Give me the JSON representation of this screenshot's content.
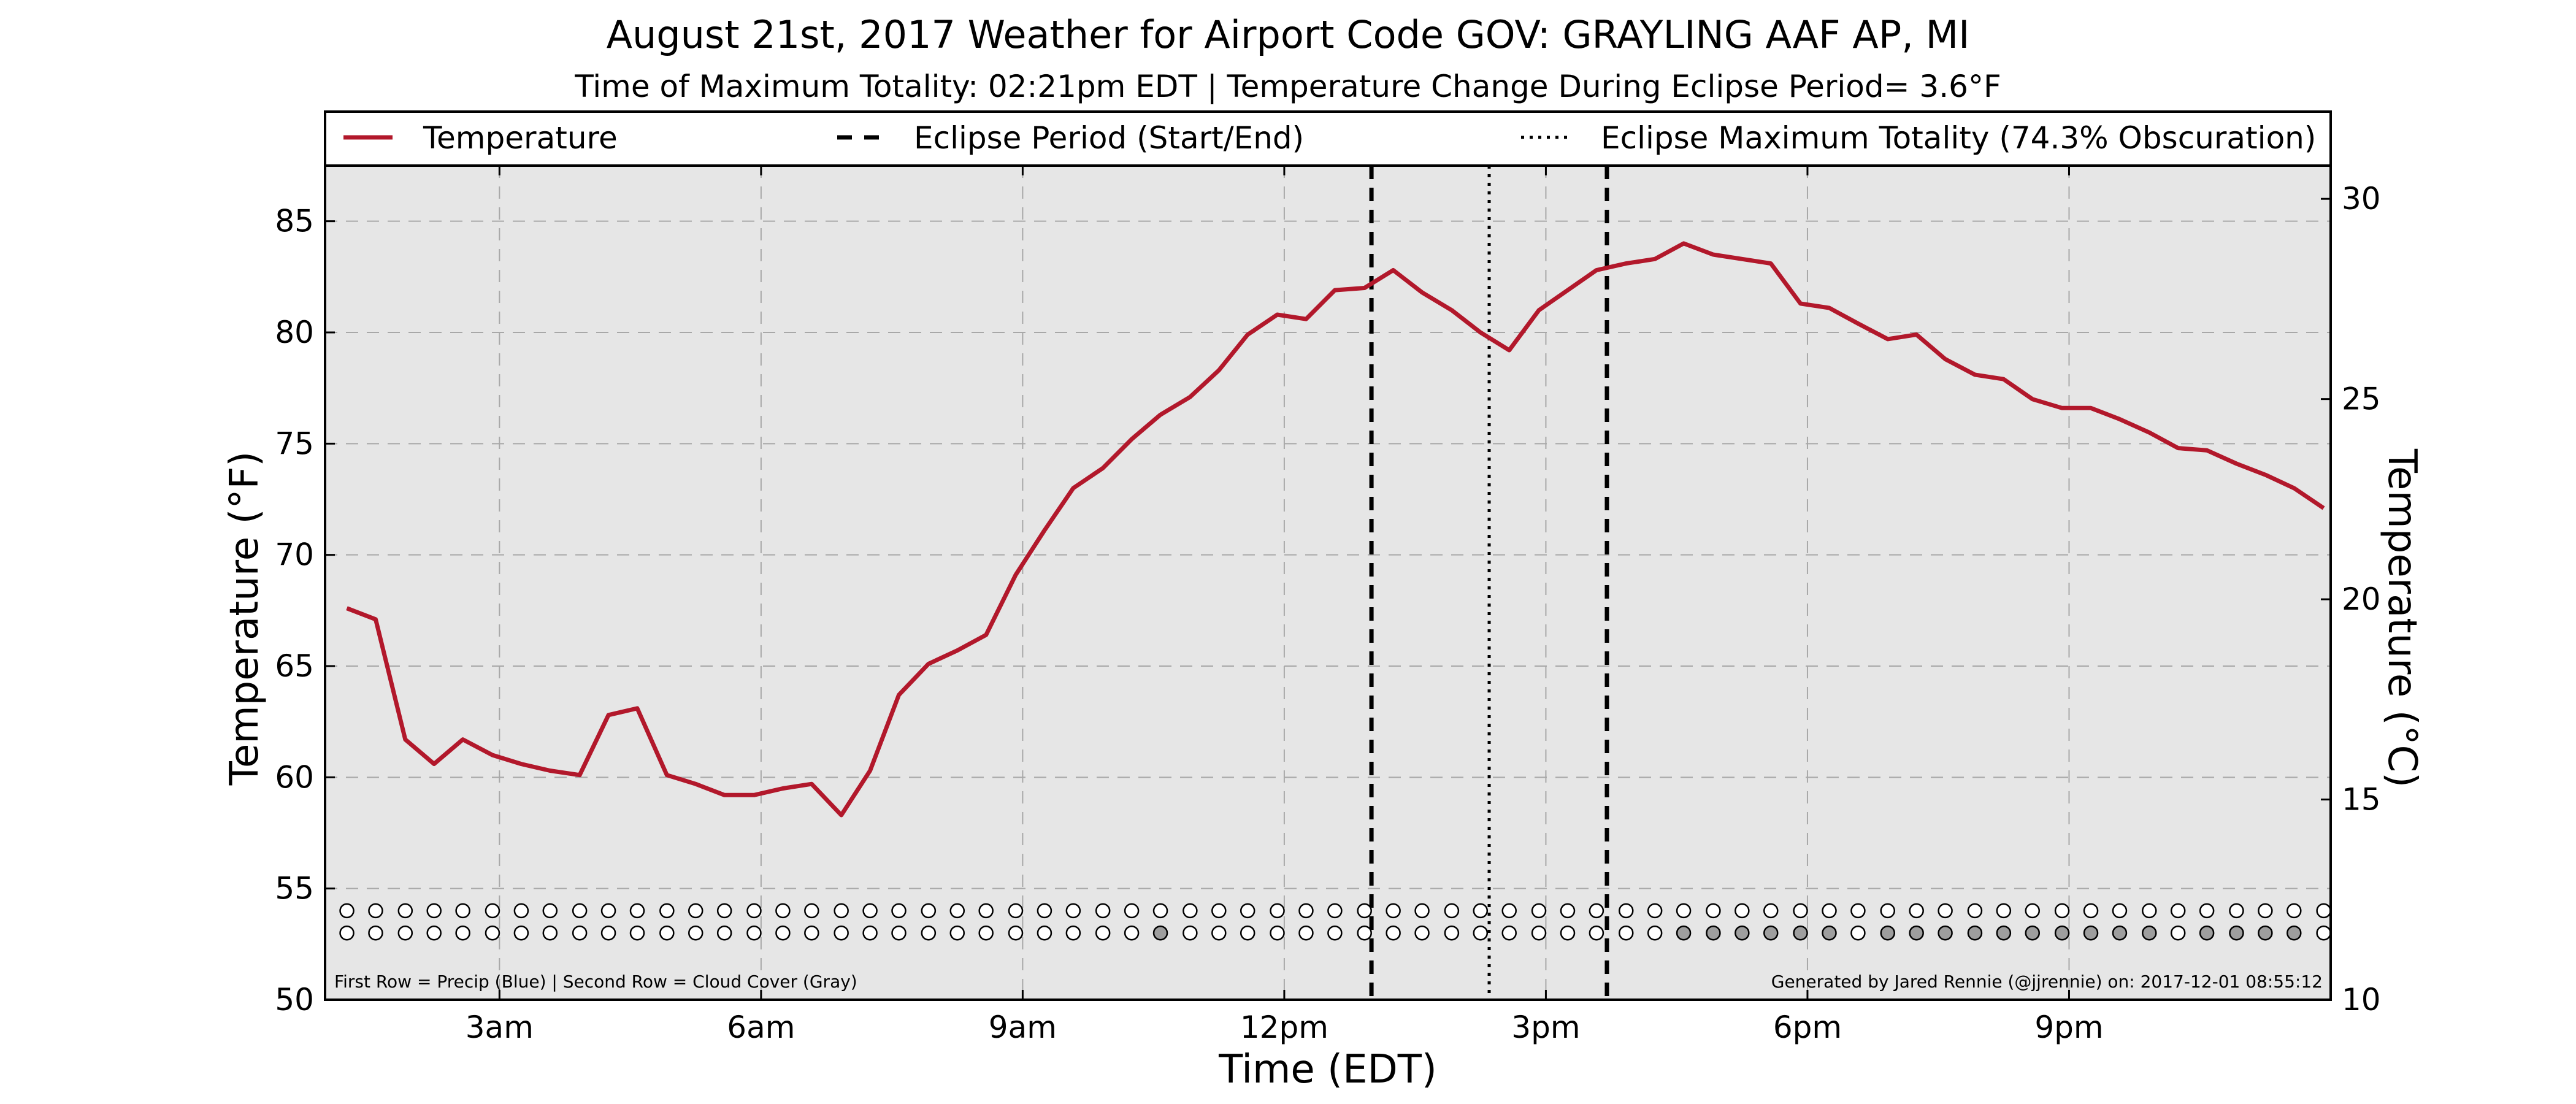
{
  "chart_data": {
    "type": "line",
    "title": "August 21st, 2017 Weather for Airport Code GOV: GRAYLING AAF AP, MI",
    "subtitle": "Time of Maximum Totality: 02:21pm EDT | Temperature Change During Eclipse Period= 3.6°F",
    "xlabel": "Time (EDT)",
    "ylabel": "Temperature (°F)",
    "ylabel_right": "Temperature (°C)",
    "x_unit": "hours after midnight, EDT",
    "xlim": [
      1,
      24
    ],
    "ylim": [
      50,
      87.5
    ],
    "ylim_right_celsius": [
      10,
      30.83
    ],
    "x_ticks": [
      {
        "value": 3,
        "label": "3am"
      },
      {
        "value": 6,
        "label": "6am"
      },
      {
        "value": 9,
        "label": "9am"
      },
      {
        "value": 12,
        "label": "12pm"
      },
      {
        "value": 15,
        "label": "3pm"
      },
      {
        "value": 18,
        "label": "6pm"
      },
      {
        "value": 21,
        "label": "9pm"
      }
    ],
    "y_ticks": [
      50,
      55,
      60,
      65,
      70,
      75,
      80,
      85
    ],
    "y_ticks_right": [
      10,
      15,
      20,
      25,
      30
    ],
    "grid": true,
    "legend_position": "top",
    "legend": [
      {
        "label": "Temperature",
        "style": "solid"
      },
      {
        "label": "Eclipse Period (Start/End)",
        "style": "dashed"
      },
      {
        "label": "Eclipse Maximum Totality (74.3% Obscuration)",
        "style": "dotted"
      }
    ],
    "series": [
      {
        "name": "Temperature",
        "color": "#b2182b",
        "x": [
          1.25,
          1.58,
          1.92,
          2.25,
          2.58,
          2.92,
          3.25,
          3.58,
          3.92,
          4.25,
          4.58,
          4.92,
          5.25,
          5.58,
          5.92,
          6.25,
          6.58,
          6.92,
          7.25,
          7.58,
          7.92,
          8.25,
          8.58,
          8.92,
          9.25,
          9.58,
          9.92,
          10.25,
          10.58,
          10.92,
          11.25,
          11.58,
          11.92,
          12.25,
          12.58,
          12.92,
          13.25,
          13.58,
          13.92,
          14.25,
          14.58,
          14.92,
          15.25,
          15.58,
          15.92,
          16.25,
          16.58,
          16.92,
          17.25,
          17.58,
          17.92,
          18.25,
          18.58,
          18.92,
          19.25,
          19.58,
          19.92,
          20.25,
          20.58,
          20.92,
          21.25,
          21.58,
          21.92,
          22.25,
          22.58,
          22.92,
          23.25,
          23.58,
          23.92
        ],
        "values": [
          67.6,
          67.1,
          61.7,
          60.6,
          61.7,
          61.0,
          60.6,
          60.3,
          60.1,
          62.8,
          63.1,
          60.1,
          59.7,
          59.2,
          59.2,
          59.5,
          59.7,
          58.3,
          60.3,
          63.7,
          65.1,
          65.7,
          66.4,
          69.1,
          71.1,
          73.0,
          73.9,
          75.2,
          76.3,
          77.1,
          78.3,
          79.9,
          80.8,
          80.6,
          81.9,
          82.0,
          82.8,
          81.8,
          81.0,
          80.0,
          79.2,
          81.0,
          81.9,
          82.8,
          83.1,
          83.3,
          84.0,
          83.5,
          83.3,
          83.1,
          81.3,
          81.1,
          80.4,
          79.7,
          79.9,
          78.8,
          78.1,
          77.9,
          77.0,
          76.6,
          76.6,
          76.1,
          75.5,
          74.8,
          74.7,
          74.1,
          73.6,
          73.0,
          72.1
        ]
      }
    ],
    "eclipse_start": 13.0,
    "eclipse_max": 14.35,
    "eclipse_end": 15.7,
    "marker_rows": [
      {
        "name": "Precip (Blue)",
        "y": 54.0,
        "filled_color": "#1f77b4",
        "x": [
          1.25,
          1.58,
          1.92,
          2.25,
          2.58,
          2.92,
          3.25,
          3.58,
          3.92,
          4.25,
          4.58,
          4.92,
          5.25,
          5.58,
          5.92,
          6.25,
          6.58,
          6.92,
          7.25,
          7.58,
          7.92,
          8.25,
          8.58,
          8.92,
          9.25,
          9.58,
          9.92,
          10.25,
          10.58,
          10.92,
          11.25,
          11.58,
          11.92,
          12.25,
          12.58,
          12.92,
          13.25,
          13.58,
          13.92,
          14.25,
          14.58,
          14.92,
          15.25,
          15.58,
          15.92,
          16.25,
          16.58,
          16.92,
          17.25,
          17.58,
          17.92,
          18.25,
          18.58,
          18.92,
          19.25,
          19.58,
          19.92,
          20.25,
          20.58,
          20.92,
          21.25,
          21.58,
          21.92,
          22.25,
          22.58,
          22.92,
          23.25,
          23.58,
          23.92
        ],
        "filled": []
      },
      {
        "name": "Cloud Cover (Gray)",
        "y": 53.0,
        "filled_color": "#9e9e9e",
        "x": [
          1.25,
          1.58,
          1.92,
          2.25,
          2.58,
          2.92,
          3.25,
          3.58,
          3.92,
          4.25,
          4.58,
          4.92,
          5.25,
          5.58,
          5.92,
          6.25,
          6.58,
          6.92,
          7.25,
          7.58,
          7.92,
          8.25,
          8.58,
          8.92,
          9.25,
          9.58,
          9.92,
          10.25,
          10.58,
          10.92,
          11.25,
          11.58,
          11.92,
          12.25,
          12.58,
          12.92,
          13.25,
          13.58,
          13.92,
          14.25,
          14.58,
          14.92,
          15.25,
          15.58,
          15.92,
          16.25,
          16.58,
          16.92,
          17.25,
          17.58,
          17.92,
          18.25,
          18.58,
          18.92,
          19.25,
          19.58,
          19.92,
          20.25,
          20.58,
          20.92,
          21.25,
          21.58,
          21.92,
          22.25,
          22.58,
          22.92,
          23.25,
          23.58,
          23.92
        ],
        "filled": [
          10.58,
          16.58,
          16.92,
          17.25,
          17.58,
          17.92,
          18.25,
          18.92,
          19.25,
          19.58,
          19.92,
          20.25,
          20.58,
          20.92,
          21.25,
          21.58,
          21.92,
          22.58,
          22.92,
          23.25,
          23.58
        ]
      }
    ],
    "annotation_left": "First Row = Precip (Blue) | Second Row = Cloud Cover (Gray)",
    "annotation_right": "Generated by Jared Rennie (@jjrennie) on: 2017-12-01 08:55:12"
  },
  "colors": {
    "plot_background": "#e6e6e6",
    "grid": "#a8a8a8",
    "temperature_line": "#b2182b",
    "eclipse_lines": "#000000",
    "marker_edge": "#000000",
    "marker_empty": "#ffffff"
  }
}
